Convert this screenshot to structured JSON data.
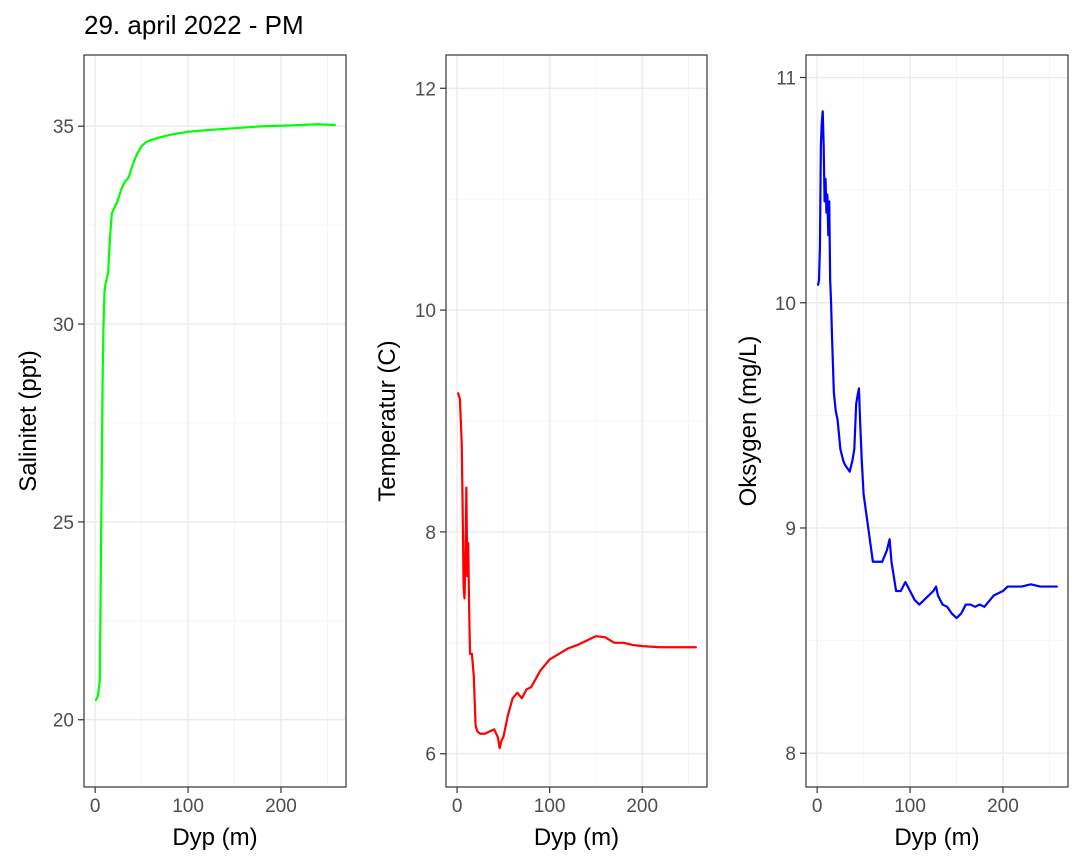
{
  "title": "29. april 2022 - PM",
  "chart_data": [
    {
      "type": "line",
      "xlabel": "Dyp (m)",
      "ylabel": "Salinitet (ppt)",
      "xlim": [
        -12,
        270
      ],
      "ylim": [
        18.3,
        36.8
      ],
      "x_ticks": [
        0,
        100,
        200
      ],
      "y_ticks": [
        20,
        25,
        30,
        35
      ],
      "color": "#00ff00",
      "series": [
        {
          "x": [
            1,
            3,
            5,
            6,
            7,
            8,
            9,
            10,
            11,
            12,
            14,
            16,
            18,
            20,
            24,
            28,
            32,
            36,
            40,
            45,
            50,
            55,
            60,
            70,
            80,
            90,
            100,
            120,
            150,
            180,
            210,
            240,
            258
          ],
          "y": [
            20.5,
            20.6,
            21,
            23.5,
            26,
            28.5,
            30,
            30.8,
            31,
            31.1,
            31.3,
            32.2,
            32.8,
            32.9,
            33.1,
            33.4,
            33.6,
            33.7,
            34,
            34.3,
            34.5,
            34.6,
            34.65,
            34.72,
            34.78,
            34.82,
            34.86,
            34.9,
            34.95,
            35,
            35.02,
            35.05,
            35.03
          ]
        }
      ]
    },
    {
      "type": "line",
      "xlabel": "Dyp (m)",
      "ylabel": "Temperatur (C)",
      "xlim": [
        -12,
        270
      ],
      "ylim": [
        5.7,
        12.3
      ],
      "x_ticks": [
        0,
        100,
        200
      ],
      "y_ticks": [
        6,
        8,
        10,
        12
      ],
      "color": "#ff0000",
      "series": [
        {
          "x": [
            1,
            3,
            5,
            6,
            7,
            8,
            9,
            10,
            11,
            12,
            13,
            14,
            16,
            18,
            20,
            22,
            25,
            30,
            35,
            40,
            44,
            46,
            48,
            50,
            55,
            60,
            65,
            70,
            75,
            80,
            90,
            100,
            110,
            120,
            130,
            140,
            150,
            160,
            170,
            180,
            190,
            200,
            220,
            240,
            258
          ],
          "y": [
            9.25,
            9.2,
            8.8,
            8.2,
            7.5,
            7.4,
            7.8,
            8.4,
            7.6,
            7.9,
            7.3,
            6.9,
            6.9,
            6.7,
            6.25,
            6.2,
            6.18,
            6.18,
            6.2,
            6.22,
            6.15,
            6.05,
            6.12,
            6.15,
            6.35,
            6.5,
            6.55,
            6.5,
            6.58,
            6.6,
            6.75,
            6.85,
            6.9,
            6.95,
            6.98,
            7.02,
            7.06,
            7.05,
            7.0,
            7.0,
            6.98,
            6.97,
            6.96,
            6.96,
            6.96
          ]
        }
      ]
    },
    {
      "type": "line",
      "xlabel": "Dyp (m)",
      "ylabel": "Oksygen (mg/L)",
      "xlim": [
        -12,
        270
      ],
      "ylim": [
        7.85,
        11.1
      ],
      "x_ticks": [
        0,
        100,
        200
      ],
      "y_ticks": [
        8,
        9,
        10,
        11
      ],
      "color": "#0000ff",
      "series": [
        {
          "x": [
            1,
            2,
            3,
            4,
            5,
            6,
            7,
            8,
            9,
            10,
            11,
            12,
            13,
            14,
            15,
            16,
            18,
            20,
            22,
            25,
            28,
            30,
            35,
            38,
            40,
            42,
            44,
            45,
            46,
            48,
            50,
            55,
            60,
            65,
            70,
            75,
            78,
            80,
            85,
            90,
            95,
            100,
            105,
            110,
            115,
            120,
            125,
            128,
            130,
            135,
            140,
            145,
            150,
            155,
            160,
            165,
            170,
            175,
            180,
            190,
            200,
            205,
            210,
            220,
            230,
            240,
            250,
            258
          ],
          "y": [
            10.08,
            10.1,
            10.25,
            10.7,
            10.8,
            10.85,
            10.7,
            10.45,
            10.55,
            10.4,
            10.48,
            10.3,
            10.45,
            10.1,
            10.0,
            9.85,
            9.6,
            9.52,
            9.48,
            9.35,
            9.3,
            9.28,
            9.25,
            9.3,
            9.35,
            9.55,
            9.6,
            9.62,
            9.5,
            9.3,
            9.15,
            9.0,
            8.85,
            8.85,
            8.85,
            8.9,
            8.95,
            8.85,
            8.72,
            8.72,
            8.76,
            8.72,
            8.68,
            8.66,
            8.68,
            8.7,
            8.72,
            8.74,
            8.7,
            8.66,
            8.65,
            8.62,
            8.6,
            8.62,
            8.66,
            8.66,
            8.65,
            8.66,
            8.65,
            8.7,
            8.72,
            8.74,
            8.74,
            8.74,
            8.75,
            8.74,
            8.74,
            8.74
          ]
        }
      ]
    }
  ]
}
